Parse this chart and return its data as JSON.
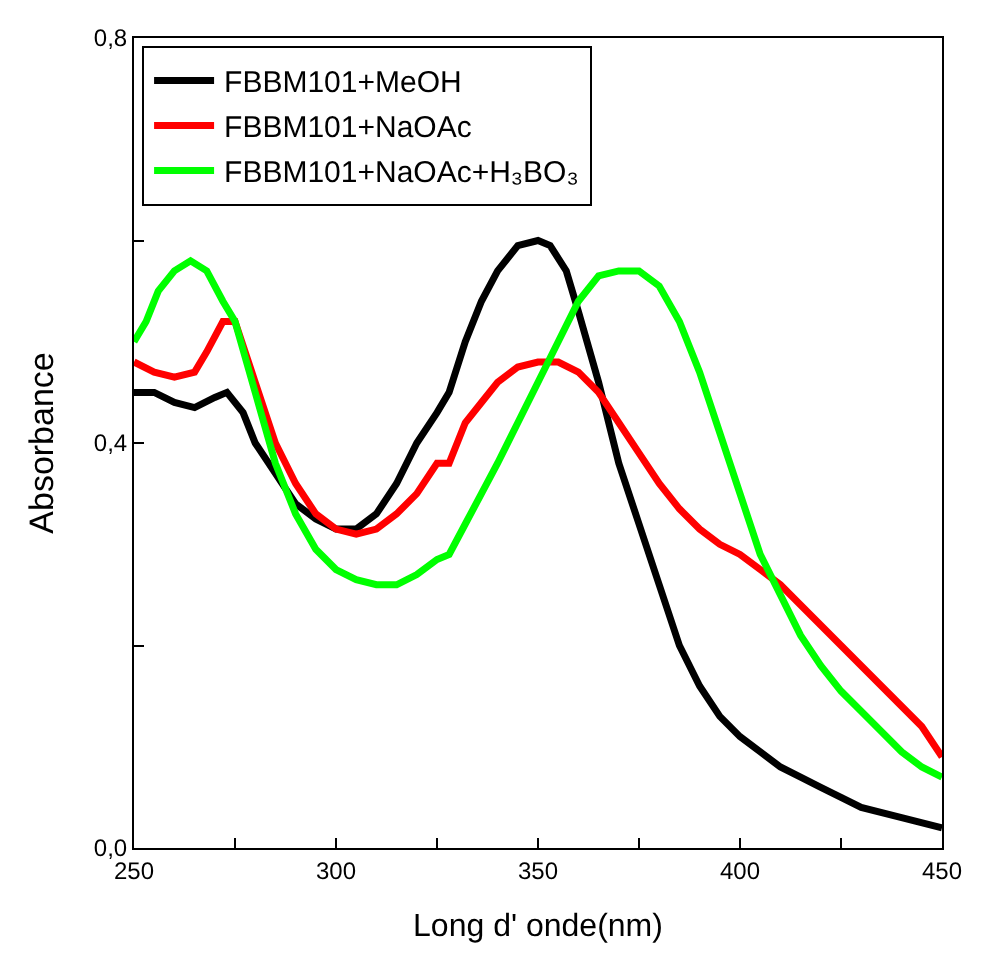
{
  "chart_data": {
    "type": "line",
    "xlabel": "Long d' onde(nm)",
    "ylabel": "Absorbance",
    "xlim": [
      250,
      450
    ],
    "ylim": [
      0,
      0.8
    ],
    "xticks": [
      250,
      {
        "value": 275,
        "label": null
      },
      300,
      {
        "value": 325,
        "label": null
      },
      350,
      {
        "value": 375,
        "label": null
      },
      400,
      {
        "value": 425,
        "label": null
      },
      450
    ],
    "yticks": [
      {
        "value": 0,
        "label": "0,0"
      },
      {
        "value": 0.2,
        "label": null
      },
      {
        "value": 0.4,
        "label": "0,4"
      },
      {
        "value": 0.6,
        "label": null
      },
      {
        "value": 0.8,
        "label": "0,8"
      }
    ],
    "legend": "top left",
    "marker": "none",
    "line_style": "solid",
    "series": [
      {
        "name": "FBBM101+MeOH",
        "color": "#000000",
        "x": [
          250,
          255,
          260,
          265,
          270,
          273,
          277,
          280,
          285,
          290,
          295,
          300,
          305,
          310,
          315,
          320,
          325,
          328,
          332,
          336,
          340,
          345,
          350,
          353,
          357,
          360,
          365,
          370,
          375,
          380,
          385,
          390,
          395,
          400,
          405,
          410,
          415,
          420,
          425,
          430,
          440,
          450
        ],
        "values": [
          0.45,
          0.45,
          0.44,
          0.435,
          0.445,
          0.45,
          0.43,
          0.4,
          0.37,
          0.34,
          0.325,
          0.315,
          0.315,
          0.33,
          0.36,
          0.4,
          0.43,
          0.45,
          0.5,
          0.54,
          0.57,
          0.595,
          0.6,
          0.595,
          0.57,
          0.53,
          0.46,
          0.38,
          0.32,
          0.26,
          0.2,
          0.16,
          0.13,
          0.11,
          0.095,
          0.08,
          0.07,
          0.06,
          0.05,
          0.04,
          0.03,
          0.02
        ]
      },
      {
        "name": "FBBM101+NaOAc",
        "color": "#ff0000",
        "x": [
          250,
          255,
          260,
          265,
          268,
          272,
          275,
          280,
          285,
          290,
          295,
          300,
          305,
          310,
          315,
          320,
          325,
          328,
          332,
          336,
          340,
          345,
          350,
          355,
          360,
          365,
          370,
          375,
          380,
          385,
          390,
          395,
          400,
          405,
          410,
          415,
          420,
          425,
          430,
          435,
          440,
          445,
          450
        ],
        "values": [
          0.48,
          0.47,
          0.465,
          0.47,
          0.49,
          0.52,
          0.52,
          0.46,
          0.4,
          0.36,
          0.33,
          0.315,
          0.31,
          0.315,
          0.33,
          0.35,
          0.38,
          0.38,
          0.42,
          0.44,
          0.46,
          0.475,
          0.48,
          0.48,
          0.47,
          0.45,
          0.42,
          0.39,
          0.36,
          0.335,
          0.315,
          0.3,
          0.29,
          0.275,
          0.26,
          0.24,
          0.22,
          0.2,
          0.18,
          0.16,
          0.14,
          0.12,
          0.09
        ]
      },
      {
        "name": "FBBM101+NaOAc+H₃BO₃",
        "color": "#00ff00",
        "x": [
          250,
          253,
          256,
          260,
          264,
          268,
          272,
          275,
          280,
          285,
          290,
          295,
          300,
          305,
          310,
          315,
          320,
          325,
          328,
          332,
          336,
          340,
          345,
          350,
          355,
          360,
          365,
          370,
          375,
          380,
          385,
          390,
          395,
          400,
          405,
          410,
          415,
          420,
          425,
          430,
          435,
          440,
          445,
          450
        ],
        "values": [
          0.5,
          0.52,
          0.55,
          0.57,
          0.58,
          0.57,
          0.54,
          0.52,
          0.45,
          0.38,
          0.33,
          0.295,
          0.275,
          0.265,
          0.26,
          0.26,
          0.27,
          0.285,
          0.29,
          0.32,
          0.35,
          0.38,
          0.42,
          0.46,
          0.5,
          0.54,
          0.565,
          0.57,
          0.57,
          0.555,
          0.52,
          0.47,
          0.41,
          0.35,
          0.29,
          0.25,
          0.21,
          0.18,
          0.155,
          0.135,
          0.115,
          0.095,
          0.08,
          0.07
        ]
      }
    ]
  }
}
